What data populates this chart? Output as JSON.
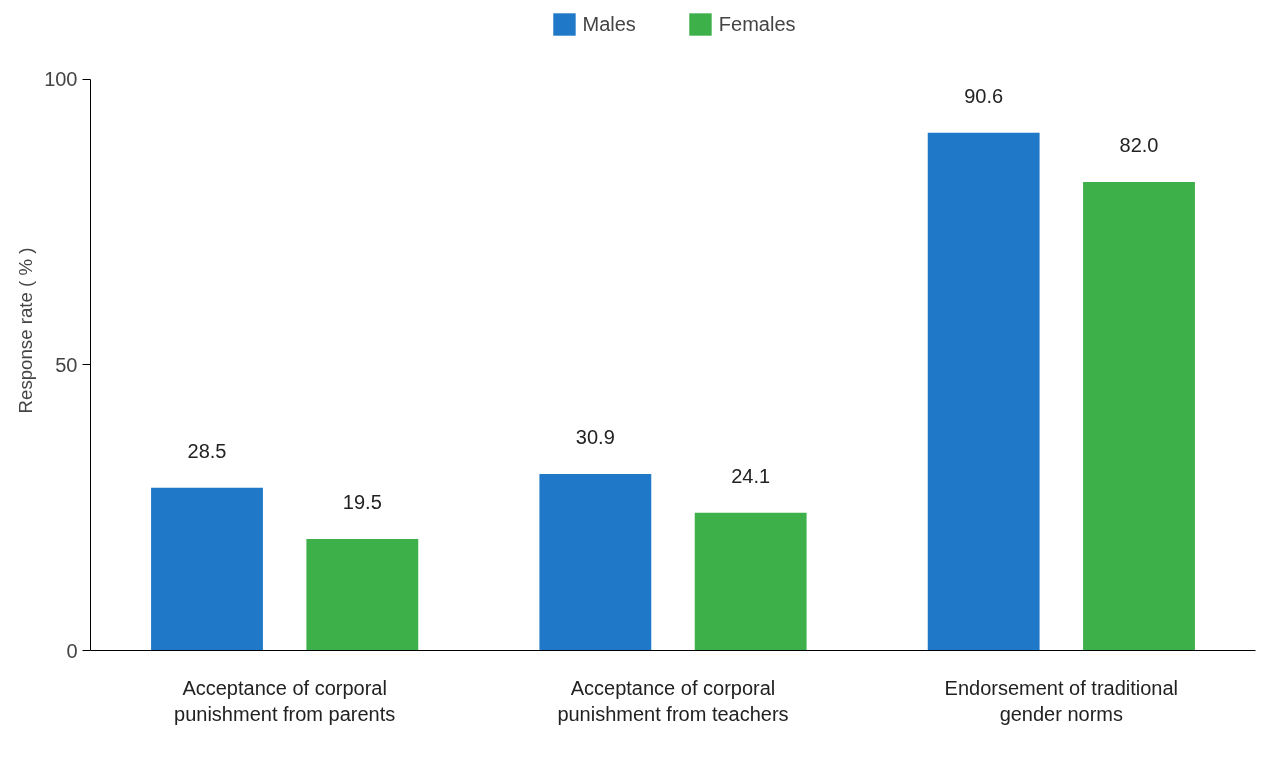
{
  "chart_data": {
    "type": "bar",
    "ylabel": "Response rate ( % )",
    "categories": [
      "Acceptance of corporal\npunishment from parents",
      "Acceptance of corporal\npunishment from teachers",
      "Endorsement of traditional\ngender norms"
    ],
    "series": [
      {
        "name": "Males",
        "color": "#1f78c8",
        "values": [
          28.5,
          30.9,
          90.6
        ],
        "value_labels": [
          "28.5",
          "30.9",
          "90.6"
        ]
      },
      {
        "name": "Females",
        "color": "#3db04a",
        "values": [
          19.5,
          24.1,
          82.0
        ],
        "value_labels": [
          "19.5",
          "24.1",
          "82.0"
        ]
      }
    ],
    "ylim": [
      0,
      100
    ],
    "yticks": [
      0,
      50,
      100
    ],
    "legend": "top",
    "grid": false
  }
}
